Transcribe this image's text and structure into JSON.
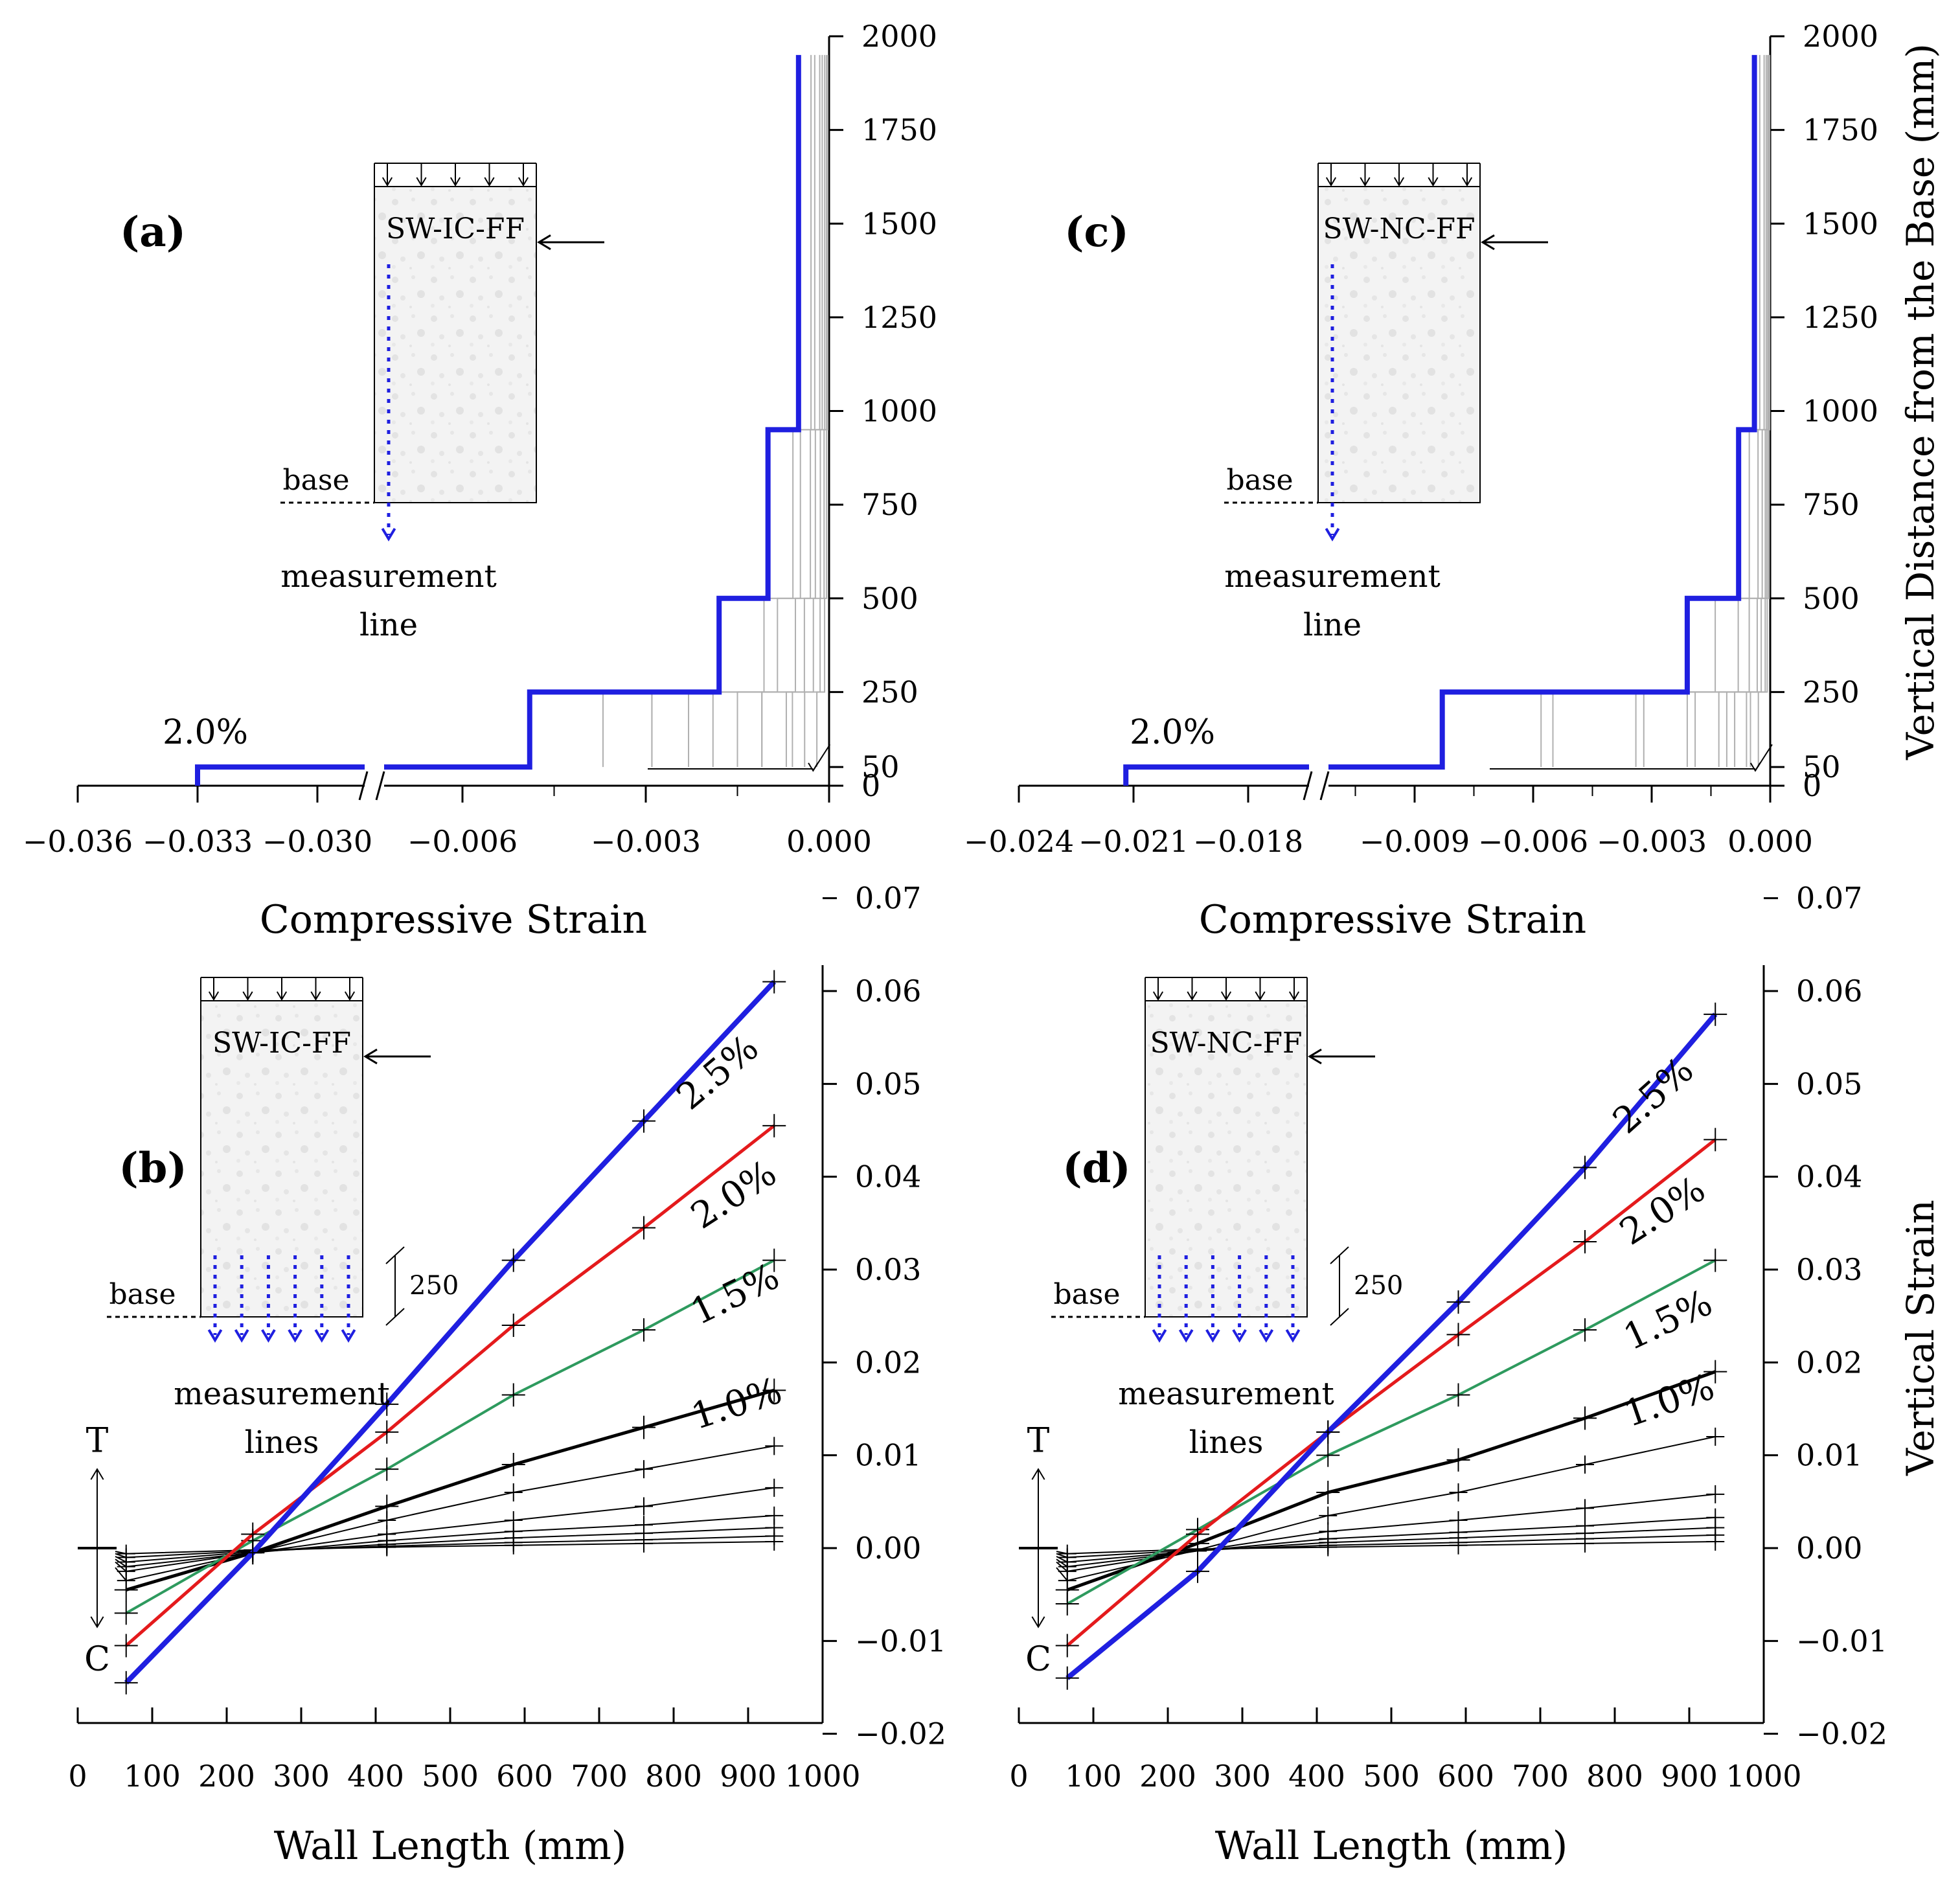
{
  "panels": {
    "a": {
      "panel_label": "(a)",
      "specimen": "SW-IC-FF",
      "peak_drift_label": "2.0%",
      "inset_base_label": "base",
      "inset_measurement_label": [
        "measurement",
        "line"
      ],
      "x_label": "Compressive Strain",
      "x_ticks_left": [
        "−0.036",
        "−0.033",
        "−0.030"
      ],
      "x_ticks_right": [
        "−0.006",
        "−0.003",
        "0.000"
      ],
      "y_ticks": [
        "2000",
        "1750",
        "1500",
        "1250",
        "1000",
        "750",
        "500",
        "250",
        "50",
        "0"
      ]
    },
    "b": {
      "panel_label": "(b)",
      "specimen": "SW-IC-FF",
      "inset_base_label": "base",
      "inset_dim_label": "250",
      "inset_measurement_label": [
        "measurement",
        "lines"
      ],
      "tension_label": "T",
      "compression_label": "C",
      "x_label": "Wall Length (mm)",
      "x_ticks": [
        "0",
        "100",
        "200",
        "300",
        "400",
        "500",
        "600",
        "700",
        "800",
        "900",
        "1000"
      ],
      "y_ticks": [
        "0.07",
        "0.06",
        "0.05",
        "0.04",
        "0.03",
        "0.02",
        "0.01",
        "0.00",
        "−0.01",
        "−0.02"
      ],
      "drift_labels": [
        "2.5%",
        "2.0%",
        "1.5%",
        "1.0%"
      ]
    },
    "c": {
      "panel_label": "(c)",
      "specimen": "SW-NC-FF",
      "peak_drift_label": "2.0%",
      "inset_base_label": "base",
      "inset_measurement_label": [
        "measurement",
        "line"
      ],
      "x_label": "Compressive Strain",
      "y_label": "Vertical Distance from the Base (mm)",
      "x_ticks_left": [
        "−0.024",
        "−0.021",
        "−0.018"
      ],
      "x_ticks_right": [
        "−0.009",
        "−0.006",
        "−0.003",
        "0.000"
      ],
      "y_ticks": [
        "2000",
        "1750",
        "1500",
        "1250",
        "1000",
        "750",
        "500",
        "250",
        "50",
        "0"
      ]
    },
    "d": {
      "panel_label": "(d)",
      "specimen": "SW-NC-FF",
      "inset_base_label": "base",
      "inset_dim_label": "250",
      "inset_measurement_label": [
        "measurement",
        "lines"
      ],
      "tension_label": "T",
      "compression_label": "C",
      "x_label": "Wall Length (mm)",
      "y_label": "Vertical Strain",
      "x_ticks": [
        "0",
        "100",
        "200",
        "300",
        "400",
        "500",
        "600",
        "700",
        "800",
        "900",
        "1000"
      ],
      "y_ticks": [
        "0.07",
        "0.06",
        "0.05",
        "0.04",
        "0.03",
        "0.02",
        "0.01",
        "0.00",
        "−0.01",
        "−0.02"
      ],
      "drift_labels": [
        "2.5%",
        "2.0%",
        "1.5%",
        "1.0%"
      ]
    }
  },
  "colors": {
    "drift_2_5": "#1f1fe0",
    "drift_2_0": "#e41a1c",
    "drift_1_5": "#2e9a5e",
    "drift_1_0": "#000000",
    "minor": "#000000",
    "grey_profiles": "#b0b0b0"
  },
  "chart_data": [
    {
      "panel": "a",
      "type": "line",
      "x_unit": "compressive strain",
      "y_unit": "mm",
      "x_axis_break": [
        -0.0285,
        -0.0075
      ],
      "xlim": [
        -0.036,
        0.0
      ],
      "ylim": [
        0,
        2000
      ],
      "series": [
        {
          "name": "2.0%",
          "x": [
            -0.033,
            -0.033,
            -0.0049,
            -0.0049,
            -0.0018,
            -0.0018,
            -0.001,
            -0.001,
            -0.0005,
            -0.0005
          ],
          "y": [
            0,
            50,
            50,
            250,
            250,
            500,
            500,
            950,
            950,
            1950
          ]
        }
      ],
      "minor_profiles_peak_strain": [
        -0.0029,
        -0.0023,
        -0.0015,
        -0.0011,
        -0.0007,
        -0.0004,
        -0.0002
      ]
    },
    {
      "panel": "b",
      "type": "line",
      "x_unit": "mm",
      "y_unit": "vertical strain",
      "xlim": [
        0,
        1000
      ],
      "ylim": [
        -0.02,
        0.07
      ],
      "x": [
        65,
        235,
        415,
        585,
        760,
        935
      ],
      "series": [
        {
          "name": "2.5%",
          "values": [
            -0.0145,
            -0.0005,
            0.0155,
            0.031,
            0.046,
            0.061
          ]
        },
        {
          "name": "2.0%",
          "values": [
            -0.0105,
            0.0015,
            0.0125,
            0.024,
            0.0345,
            0.0455
          ]
        },
        {
          "name": "1.5%",
          "values": [
            -0.007,
            0.0008,
            0.0085,
            0.0165,
            0.0235,
            0.031
          ]
        },
        {
          "name": "1.0%",
          "values": [
            -0.0045,
            -0.0005,
            0.0045,
            0.009,
            0.013,
            0.017
          ]
        }
      ],
      "minor_series": [
        [
          -0.0035,
          -0.0005,
          0.003,
          0.006,
          0.0085,
          0.011
        ],
        [
          -0.0025,
          -0.0005,
          0.0015,
          0.003,
          0.0045,
          0.0065
        ],
        [
          -0.002,
          -0.0005,
          0.0008,
          0.0018,
          0.0025,
          0.0035
        ],
        [
          -0.0015,
          -0.0004,
          0.0004,
          0.0011,
          0.0016,
          0.0022
        ],
        [
          -0.001,
          -0.0003,
          0.0002,
          0.0006,
          0.0009,
          0.0013
        ],
        [
          -0.0006,
          -0.0002,
          0.0001,
          0.0003,
          0.0005,
          0.0007
        ]
      ]
    },
    {
      "panel": "c",
      "type": "line",
      "x_unit": "compressive strain",
      "y_unit": "mm",
      "x_axis_break": [
        -0.0163,
        -0.0118
      ],
      "xlim": [
        -0.024,
        0.0
      ],
      "ylim": [
        0,
        2000
      ],
      "series": [
        {
          "name": "2.0%",
          "x": [
            -0.0212,
            -0.0212,
            -0.0083,
            -0.0083,
            -0.0021,
            -0.0021,
            -0.0008,
            -0.0008,
            -0.0004,
            -0.0004
          ],
          "y": [
            0,
            50,
            50,
            250,
            250,
            500,
            500,
            950,
            950,
            1950
          ]
        }
      ],
      "minor_profiles_peak_strain": [
        -0.0055,
        -0.0032,
        -0.0021,
        -0.0013,
        -0.0009,
        -0.0005,
        -0.0003
      ]
    },
    {
      "panel": "d",
      "type": "line",
      "x_unit": "mm",
      "y_unit": "vertical strain",
      "xlim": [
        0,
        1000
      ],
      "ylim": [
        -0.02,
        0.07
      ],
      "x": [
        65,
        240,
        415,
        590,
        760,
        935
      ],
      "series": [
        {
          "name": "2.5%",
          "values": [
            -0.014,
            -0.0025,
            0.0125,
            0.0265,
            0.041,
            0.0575
          ]
        },
        {
          "name": "2.0%",
          "values": [
            -0.0105,
            0.0015,
            0.0125,
            0.023,
            0.033,
            0.044
          ]
        },
        {
          "name": "1.5%",
          "values": [
            -0.006,
            0.002,
            0.01,
            0.0165,
            0.0235,
            0.031
          ]
        },
        {
          "name": "1.0%",
          "values": [
            -0.0045,
            0.0005,
            0.006,
            0.0095,
            0.014,
            0.019
          ]
        }
      ],
      "minor_series": [
        [
          -0.0035,
          -0.0002,
          0.0035,
          0.006,
          0.009,
          0.012
        ],
        [
          -0.0025,
          -0.0003,
          0.0018,
          0.003,
          0.0043,
          0.0058
        ],
        [
          -0.002,
          -0.0003,
          0.001,
          0.0017,
          0.0024,
          0.0033
        ],
        [
          -0.0015,
          -0.0003,
          0.0006,
          0.0011,
          0.0016,
          0.0022
        ],
        [
          -0.001,
          -0.0002,
          0.0003,
          0.0006,
          0.001,
          0.0014
        ],
        [
          -0.0006,
          -0.0001,
          0.0001,
          0.0003,
          0.0005,
          0.0007
        ]
      ]
    }
  ]
}
